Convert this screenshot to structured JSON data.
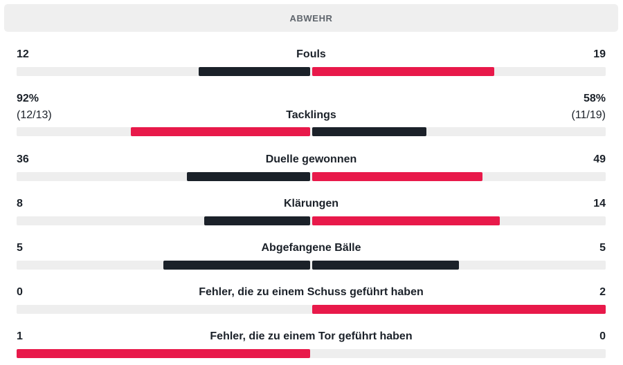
{
  "section": {
    "title": "ABWEHR"
  },
  "colors": {
    "dark": "#1b2129",
    "accent": "#e8194a",
    "track": "#eeeeee",
    "header_bg": "#efefef"
  },
  "stats": [
    {
      "label": "Fouls",
      "home": "12",
      "away": "19",
      "home_fill": 0.38,
      "away_fill": 0.62,
      "home_color": "dark",
      "away_color": "accent"
    },
    {
      "label": "Tacklings",
      "home": "92%",
      "home_sub": "(12/13)",
      "away": "58%",
      "away_sub": "(11/19)",
      "home_fill": 0.61,
      "away_fill": 0.39,
      "home_color": "accent",
      "away_color": "dark"
    },
    {
      "label": "Duelle gewonnen",
      "home": "36",
      "away": "49",
      "home_fill": 0.42,
      "away_fill": 0.58,
      "home_color": "dark",
      "away_color": "accent"
    },
    {
      "label": "Klärungen",
      "home": "8",
      "away": "14",
      "home_fill": 0.36,
      "away_fill": 0.64,
      "home_color": "dark",
      "away_color": "accent"
    },
    {
      "label": "Abgefangene Bälle",
      "home": "5",
      "away": "5",
      "home_fill": 0.5,
      "away_fill": 0.5,
      "home_color": "dark",
      "away_color": "dark"
    },
    {
      "label": "Fehler, die zu einem Schuss geführt haben",
      "home": "0",
      "away": "2",
      "home_fill": 0,
      "away_fill": 1,
      "home_color": "dark",
      "away_color": "accent"
    },
    {
      "label": "Fehler, die zu einem Tor geführt haben",
      "home": "1",
      "away": "0",
      "home_fill": 1,
      "away_fill": 0,
      "home_color": "accent",
      "away_color": "dark"
    }
  ]
}
